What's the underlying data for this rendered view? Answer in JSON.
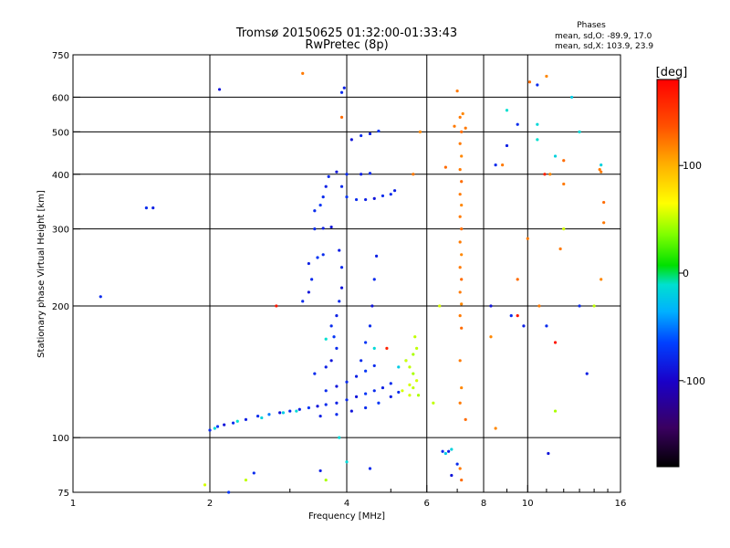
{
  "chart_data": {
    "type": "scatter",
    "title": "Tromsø 20150625 01:32:00-01:33:43",
    "subtitle": "RwPretec (8p)",
    "xlabel": "Frequency [MHz]",
    "ylabel": "Stationary phase Virtual Height [km]",
    "x_scale": "log",
    "y_scale": "log",
    "xlim": [
      1,
      16
    ],
    "ylim": [
      75,
      750
    ],
    "x_ticks": [
      1,
      2,
      4,
      6,
      8,
      10,
      16
    ],
    "x_tick_labels": [
      "1",
      "2",
      "4",
      "6",
      "8",
      "10",
      "16"
    ],
    "y_ticks": [
      75,
      100,
      200,
      300,
      400,
      500,
      600,
      750
    ],
    "y_tick_labels": [
      "75",
      "100",
      "200",
      "300",
      "400",
      "500",
      "600",
      "750"
    ],
    "grid": true,
    "phase_box": {
      "title": "Phases",
      "line1": "mean, sd,O: -89.9, 17.0",
      "line2": "mean, sd,X: 103.9, 23.9"
    },
    "colorbar": {
      "label": "[deg]",
      "min": -180,
      "max": 180,
      "ticks": [
        100,
        0,
        -100
      ],
      "tick_labels": [
        "100",
        "0",
        "-100"
      ]
    },
    "series": [
      {
        "points": [
          [
            2.0,
            104,
            -100
          ],
          [
            2.08,
            106,
            -95
          ],
          [
            2.15,
            107,
            -110
          ],
          [
            2.25,
            108,
            -100
          ],
          [
            2.4,
            110,
            -105
          ],
          [
            2.55,
            112,
            -100
          ],
          [
            2.7,
            113,
            -70
          ],
          [
            2.85,
            114,
            -110
          ],
          [
            3.0,
            115,
            -100
          ],
          [
            3.15,
            116,
            -105
          ],
          [
            3.3,
            117,
            -95
          ],
          [
            3.45,
            118,
            -110
          ],
          [
            3.6,
            119,
            -100
          ],
          [
            3.8,
            120,
            -105
          ],
          [
            4.0,
            122,
            -100
          ],
          [
            4.2,
            124,
            -110
          ],
          [
            4.4,
            126,
            -95
          ],
          [
            4.6,
            128,
            -100
          ],
          [
            4.8,
            130,
            -105
          ],
          [
            5.0,
            133,
            -100
          ],
          [
            3.5,
            112,
            -105
          ],
          [
            3.8,
            113,
            -100
          ],
          [
            4.1,
            115,
            -110
          ],
          [
            4.4,
            117,
            -100
          ],
          [
            4.7,
            120,
            -95
          ],
          [
            5.0,
            124,
            -105
          ],
          [
            5.2,
            127,
            -100
          ],
          [
            3.6,
            128,
            -100
          ],
          [
            3.8,
            131,
            -110
          ],
          [
            4.0,
            134,
            -100
          ],
          [
            4.2,
            138,
            -105
          ],
          [
            4.4,
            142,
            -95
          ],
          [
            4.6,
            146,
            -100
          ],
          [
            3.4,
            140,
            -100
          ],
          [
            3.6,
            145,
            -105
          ],
          [
            3.7,
            150,
            -110
          ],
          [
            3.8,
            160,
            -100
          ],
          [
            3.75,
            170,
            -95
          ],
          [
            3.7,
            180,
            -100
          ],
          [
            3.8,
            190,
            -105
          ],
          [
            3.85,
            205,
            -100
          ],
          [
            3.9,
            220,
            -110
          ],
          [
            3.9,
            245,
            -100
          ],
          [
            3.85,
            268,
            -105
          ],
          [
            4.3,
            150,
            -100
          ],
          [
            4.4,
            165,
            -95
          ],
          [
            4.5,
            180,
            -100
          ],
          [
            4.55,
            200,
            -110
          ],
          [
            4.6,
            230,
            -100
          ],
          [
            4.65,
            260,
            -105
          ],
          [
            3.2,
            205,
            -100
          ],
          [
            3.3,
            215,
            -110
          ],
          [
            3.35,
            230,
            -100
          ],
          [
            3.3,
            250,
            -105
          ],
          [
            3.45,
            258,
            -95
          ],
          [
            3.55,
            262,
            -100
          ],
          [
            3.4,
            300,
            -100
          ],
          [
            3.55,
            301,
            -105
          ],
          [
            3.7,
            303,
            -110
          ],
          [
            3.4,
            330,
            -100
          ],
          [
            3.5,
            340,
            -95
          ],
          [
            3.55,
            355,
            -100
          ],
          [
            3.6,
            375,
            -105
          ],
          [
            3.65,
            395,
            -100
          ],
          [
            3.8,
            405,
            -110
          ],
          [
            4.0,
            400,
            -100
          ],
          [
            4.3,
            400,
            -105
          ],
          [
            4.5,
            402,
            -100
          ],
          [
            4.0,
            355,
            -95
          ],
          [
            4.2,
            350,
            -100
          ],
          [
            4.4,
            350,
            -105
          ],
          [
            4.6,
            352,
            -110
          ],
          [
            4.8,
            357,
            -100
          ],
          [
            5.0,
            360,
            -100
          ],
          [
            5.1,
            367,
            -105
          ],
          [
            3.9,
            375,
            -100
          ],
          [
            4.1,
            480,
            -110
          ],
          [
            4.3,
            490,
            -100
          ],
          [
            4.5,
            495,
            -105
          ],
          [
            4.7,
            502,
            -95
          ],
          [
            3.9,
            615,
            -100
          ],
          [
            3.95,
            630,
            -105
          ],
          [
            2.1,
            625,
            -110
          ],
          [
            1.45,
            335,
            -100
          ],
          [
            1.5,
            335,
            -105
          ],
          [
            1.15,
            210,
            -100
          ],
          [
            2.2,
            75,
            -95
          ],
          [
            2.5,
            83,
            -100
          ],
          [
            3.5,
            84,
            -105
          ],
          [
            4.5,
            85,
            -100
          ],
          [
            6.5,
            93,
            -100
          ],
          [
            6.7,
            93,
            -105
          ],
          [
            6.8,
            82,
            -110
          ],
          [
            7.0,
            87,
            -100
          ],
          [
            8.5,
            420,
            -100
          ],
          [
            9.0,
            465,
            -105
          ],
          [
            9.5,
            520,
            -100
          ],
          [
            8.3,
            200,
            -110
          ],
          [
            9.2,
            190,
            -100
          ],
          [
            9.8,
            180,
            -105
          ],
          [
            11.0,
            180,
            -100
          ],
          [
            11.1,
            92,
            -110
          ],
          [
            13.0,
            200,
            -100
          ],
          [
            13.5,
            140,
            -105
          ],
          [
            10.5,
            640,
            -100
          ]
        ]
      },
      {
        "points": [
          [
            2.05,
            105,
            -20
          ],
          [
            2.3,
            109,
            -15
          ],
          [
            2.6,
            111,
            -25
          ],
          [
            2.9,
            114,
            -30
          ],
          [
            3.1,
            115,
            -20
          ],
          [
            5.2,
            145,
            -30
          ],
          [
            5.4,
            150,
            -25
          ],
          [
            4.6,
            160,
            -20
          ],
          [
            3.6,
            168,
            -15
          ],
          [
            6.6,
            92,
            -30
          ],
          [
            6.8,
            94,
            -25
          ],
          [
            4.0,
            88,
            -20
          ],
          [
            9.0,
            560,
            -15
          ],
          [
            10.5,
            520,
            -20
          ],
          [
            11.5,
            440,
            -25
          ],
          [
            12.5,
            600,
            -30
          ],
          [
            13.0,
            500,
            -20
          ],
          [
            14.5,
            420,
            -25
          ],
          [
            10.5,
            480,
            -15
          ],
          [
            3.85,
            100,
            -20
          ]
        ]
      },
      {
        "points": [
          [
            5.5,
            125,
            60
          ],
          [
            5.6,
            130,
            55
          ],
          [
            5.7,
            135,
            60
          ],
          [
            5.6,
            140,
            50
          ],
          [
            5.5,
            145,
            55
          ],
          [
            5.4,
            150,
            60
          ],
          [
            5.6,
            155,
            50
          ],
          [
            5.7,
            160,
            55
          ],
          [
            5.3,
            128,
            60
          ],
          [
            5.65,
            170,
            55
          ],
          [
            5.75,
            125,
            50
          ],
          [
            5.5,
            132,
            60
          ],
          [
            3.6,
            80,
            50
          ],
          [
            2.4,
            80,
            55
          ],
          [
            1.95,
            78,
            60
          ],
          [
            6.2,
            120,
            55
          ],
          [
            6.4,
            200,
            60
          ],
          [
            11.5,
            115,
            50
          ],
          [
            14.0,
            200,
            55
          ],
          [
            12.0,
            300,
            60
          ]
        ]
      },
      {
        "points": [
          [
            7.1,
            540,
            130
          ],
          [
            7.15,
            500,
            135
          ],
          [
            7.1,
            470,
            130
          ],
          [
            7.15,
            440,
            125
          ],
          [
            7.1,
            410,
            130
          ],
          [
            7.15,
            385,
            135
          ],
          [
            7.1,
            360,
            130
          ],
          [
            7.15,
            340,
            125
          ],
          [
            7.1,
            320,
            130
          ],
          [
            7.15,
            300,
            135
          ],
          [
            7.1,
            280,
            130
          ],
          [
            7.15,
            262,
            125
          ],
          [
            7.1,
            245,
            130
          ],
          [
            7.15,
            230,
            135
          ],
          [
            7.1,
            215,
            130
          ],
          [
            7.15,
            202,
            125
          ],
          [
            7.1,
            190,
            130
          ],
          [
            7.15,
            178,
            135
          ],
          [
            7.1,
            150,
            130
          ],
          [
            7.15,
            130,
            125
          ],
          [
            7.1,
            120,
            130
          ],
          [
            7.15,
            80,
            135
          ],
          [
            7.1,
            85,
            130
          ],
          [
            6.9,
            515,
            130
          ],
          [
            7.2,
            550,
            125
          ],
          [
            3.2,
            680,
            130
          ],
          [
            3.9,
            540,
            135
          ],
          [
            5.6,
            400,
            130
          ],
          [
            5.8,
            500,
            125
          ],
          [
            7.0,
            620,
            130
          ],
          [
            6.6,
            415,
            135
          ],
          [
            7.3,
            510,
            130
          ],
          [
            8.3,
            170,
            125
          ],
          [
            8.8,
            420,
            130
          ],
          [
            9.5,
            230,
            135
          ],
          [
            10.0,
            285,
            130
          ],
          [
            11.2,
            400,
            125
          ],
          [
            11.8,
            270,
            130
          ],
          [
            12.0,
            430,
            135
          ],
          [
            14.5,
            405,
            130
          ],
          [
            14.5,
            230,
            125
          ],
          [
            14.7,
            310,
            130
          ],
          [
            14.7,
            345,
            135
          ],
          [
            10.6,
            200,
            130
          ],
          [
            11.0,
            670,
            125
          ],
          [
            12.0,
            380,
            130
          ],
          [
            10.1,
            650,
            135
          ],
          [
            8.5,
            105,
            125
          ],
          [
            14.4,
            410,
            130
          ],
          [
            7.3,
            110,
            135
          ]
        ]
      },
      {
        "points": [
          [
            2.8,
            200,
            170
          ],
          [
            4.9,
            160,
            165
          ],
          [
            9.5,
            190,
            170
          ],
          [
            10.9,
            400,
            165
          ],
          [
            11.5,
            165,
            170
          ]
        ]
      }
    ]
  }
}
